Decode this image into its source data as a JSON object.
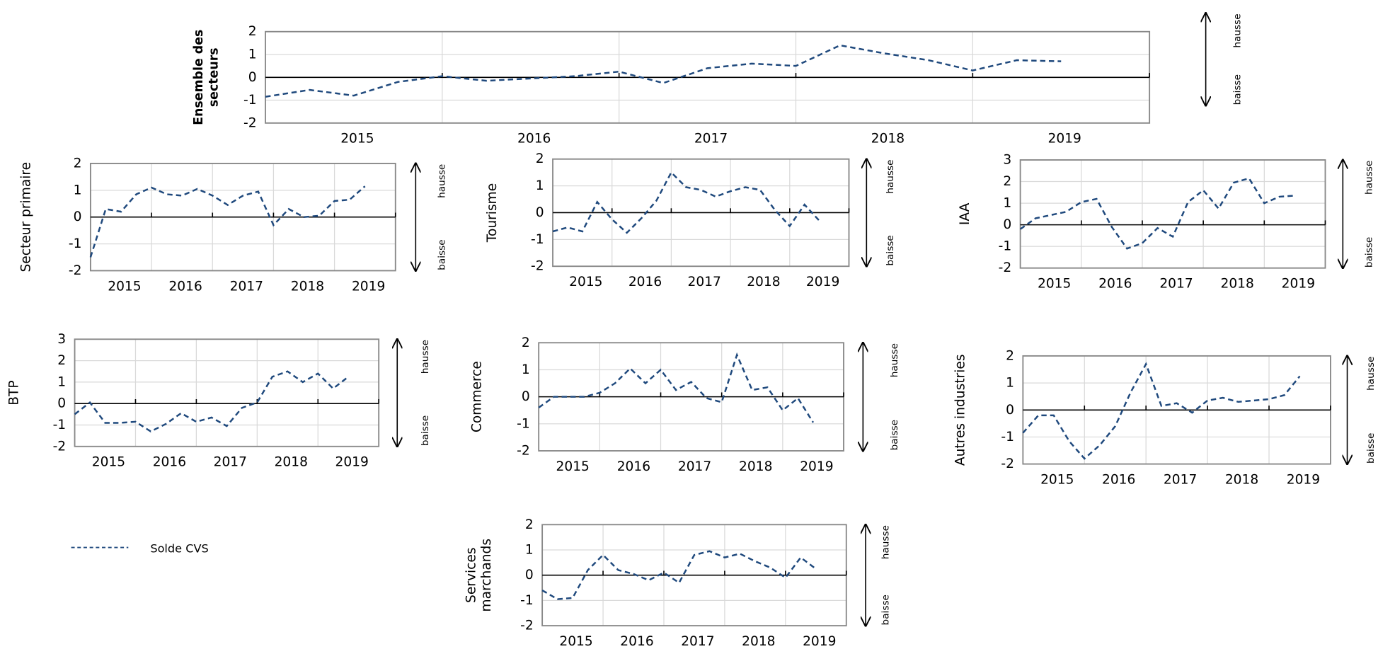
{
  "legend_label": "Solde CVS",
  "chart_data": [
    {
      "type": "line",
      "y_label": [
        "Ensemble des",
        "secteurs"
      ],
      "color": "#1f497d",
      "categories": [
        null,
        null,
        "2015",
        null,
        null,
        null,
        "2016",
        null,
        null,
        null,
        "2017",
        null,
        null,
        null,
        "2018",
        null,
        null,
        null,
        "2019"
      ],
      "values": [
        -0.85,
        -0.55,
        -0.8,
        -0.2,
        0.05,
        -0.15,
        -0.05,
        0.05,
        0.25,
        -0.25,
        0.4,
        0.6,
        0.5,
        1.4,
        1.05,
        0.75,
        0.3,
        0.75,
        0.7
      ],
      "ylim": [
        -2,
        2
      ],
      "yticks": [
        -2,
        -1,
        0,
        1,
        2
      ],
      "grid": true,
      "annotations": [
        "hausse",
        "baisse"
      ]
    },
    {
      "type": "line",
      "y_label": [
        "Secteur primaire"
      ],
      "color": "#1f497d",
      "categories": [
        null,
        null,
        "2015",
        null,
        null,
        null,
        "2016",
        null,
        null,
        null,
        "2017",
        null,
        null,
        null,
        "2018",
        null,
        null,
        null,
        "2019"
      ],
      "values": [
        -1.5,
        0.3,
        0.2,
        0.85,
        1.1,
        0.85,
        0.8,
        1.05,
        0.8,
        0.45,
        0.8,
        0.95,
        -0.3,
        0.3,
        0,
        0.05,
        0.6,
        0.65,
        1.15
      ],
      "ylim": [
        -2,
        2
      ],
      "yticks": [
        -2,
        -1,
        0,
        1,
        2
      ],
      "grid": true,
      "annotations": [
        "hausse",
        "baisse"
      ]
    },
    {
      "type": "line",
      "y_label": [
        "Tourisme"
      ],
      "color": "#1f497d",
      "categories": [
        null,
        null,
        "2015",
        null,
        null,
        null,
        "2016",
        null,
        null,
        null,
        "2017",
        null,
        null,
        null,
        "2018",
        null,
        null,
        null,
        "2019"
      ],
      "values": [
        -0.7,
        -0.55,
        -0.7,
        0.4,
        -0.25,
        -0.75,
        -0.2,
        0.45,
        1.5,
        0.95,
        0.85,
        0.6,
        0.8,
        0.95,
        0.85,
        0.1,
        -0.5,
        0.3,
        -0.3
      ],
      "ylim": [
        -2,
        2
      ],
      "yticks": [
        -2,
        -1,
        0,
        1,
        2
      ],
      "grid": true,
      "annotations": [
        "hausse",
        "baisse"
      ]
    },
    {
      "type": "line",
      "y_label": [
        "IAA"
      ],
      "color": "#1f497d",
      "categories": [
        null,
        null,
        "2015",
        null,
        null,
        null,
        "2016",
        null,
        null,
        null,
        "2017",
        null,
        null,
        null,
        "2018",
        null,
        null,
        null,
        "2019"
      ],
      "values": [
        -0.2,
        0.3,
        0.45,
        0.6,
        1.05,
        1.2,
        -0.1,
        -1.1,
        -0.85,
        -0.15,
        -0.55,
        1.05,
        1.6,
        0.75,
        1.95,
        2.15,
        1.0,
        1.3,
        1.35
      ],
      "ylim": [
        -2,
        3
      ],
      "yticks": [
        -2,
        -1,
        0,
        1,
        2,
        3
      ],
      "grid": true,
      "annotations": [
        "hausse",
        "baisse"
      ]
    },
    {
      "type": "line",
      "y_label": [
        "BTP"
      ],
      "color": "#1f497d",
      "categories": [
        null,
        null,
        "2015",
        null,
        null,
        null,
        "2016",
        null,
        null,
        null,
        "2017",
        null,
        null,
        null,
        "2018",
        null,
        null,
        null,
        "2019"
      ],
      "values": [
        -0.5,
        0.05,
        -0.9,
        -0.9,
        -0.85,
        -1.3,
        -0.95,
        -0.45,
        -0.85,
        -0.65,
        -1.05,
        -0.2,
        0.05,
        1.25,
        1.5,
        1.0,
        1.4,
        0.7,
        1.25
      ],
      "ylim": [
        -2,
        3
      ],
      "yticks": [
        -2,
        -1,
        0,
        1,
        2,
        3
      ],
      "grid": true,
      "annotations": [
        "hausse",
        "baisse"
      ]
    },
    {
      "type": "line",
      "y_label": [
        "Commerce"
      ],
      "color": "#1f497d",
      "categories": [
        null,
        null,
        "2015",
        null,
        null,
        null,
        "2016",
        null,
        null,
        null,
        "2017",
        null,
        null,
        null,
        "2018",
        null,
        null,
        null,
        "2019"
      ],
      "values": [
        -0.4,
        0,
        0,
        0,
        0.15,
        0.5,
        1.05,
        0.5,
        1.0,
        0.25,
        0.55,
        -0.05,
        -0.2,
        1.55,
        0.25,
        0.35,
        -0.5,
        -0.05,
        -0.95
      ],
      "ylim": [
        -2,
        2
      ],
      "yticks": [
        -2,
        -1,
        0,
        1,
        2
      ],
      "grid": true,
      "annotations": [
        "hausse",
        "baisse"
      ]
    },
    {
      "type": "line",
      "y_label": [
        "Autres industries"
      ],
      "color": "#1f497d",
      "categories": [
        null,
        null,
        "2015",
        null,
        null,
        null,
        "2016",
        null,
        null,
        null,
        "2017",
        null,
        null,
        null,
        "2018",
        null,
        null,
        null,
        "2019"
      ],
      "values": [
        -0.85,
        -0.2,
        -0.2,
        -1.15,
        -1.8,
        -1.3,
        -0.6,
        0.65,
        1.7,
        0.15,
        0.25,
        -0.1,
        0.35,
        0.45,
        0.3,
        0.35,
        0.4,
        0.55,
        1.25
      ],
      "ylim": [
        -2,
        2
      ],
      "yticks": [
        -2,
        -1,
        0,
        1,
        2
      ],
      "grid": true,
      "annotations": [
        "hausse",
        "baisse"
      ]
    },
    {
      "type": "line",
      "y_label": [
        "Services",
        "marchands"
      ],
      "color": "#1f497d",
      "categories": [
        null,
        null,
        "2015",
        null,
        null,
        null,
        "2016",
        null,
        null,
        null,
        "2017",
        null,
        null,
        null,
        "2018",
        null,
        null,
        null,
        "2019"
      ],
      "values": [
        -0.6,
        -0.95,
        -0.9,
        0.2,
        0.8,
        0.2,
        0.05,
        -0.2,
        0.1,
        -0.3,
        0.8,
        0.95,
        0.7,
        0.85,
        0.55,
        0.3,
        -0.1,
        0.7,
        0.25
      ],
      "ylim": [
        -2,
        2
      ],
      "yticks": [
        -2,
        -1,
        0,
        1,
        2
      ],
      "grid": true,
      "annotations": [
        "hausse",
        "baisse"
      ]
    }
  ]
}
